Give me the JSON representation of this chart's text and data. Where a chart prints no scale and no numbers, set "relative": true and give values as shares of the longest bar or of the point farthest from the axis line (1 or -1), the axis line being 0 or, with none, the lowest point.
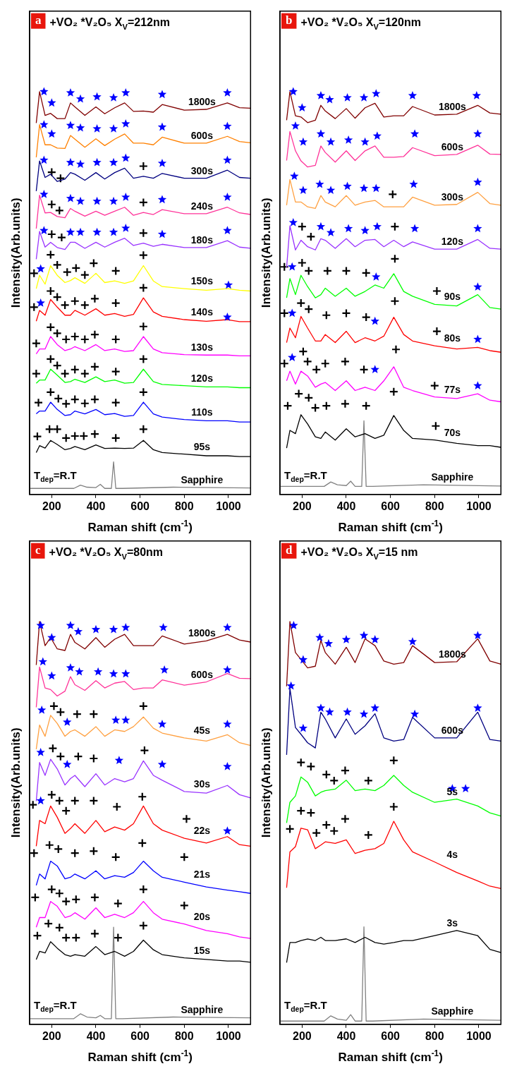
{
  "chart_data": [
    {
      "type": "line",
      "title": "+VO₂ *V₂O₅ X$_{V}$=212nm",
      "xlabel": "Raman shift (cm$^{-1}$)",
      "ylabel": "Intensity(Arb.units)",
      "annotations": [
        "a",
        "T$_{dep}$=R.T"
      ],
      "relative": true,
      "tick_labels": "x",
      "grid": false,
      "legend": false,
      "xlim": [
        100,
        1100
      ],
      "xticks": [
        200,
        400,
        600,
        800,
        1000
      ],
      "x": [
        130,
        145,
        170,
        195,
        225,
        260,
        285,
        305,
        350,
        400,
        440,
        485,
        530,
        570,
        615,
        660,
        700,
        800,
        900,
        995,
        1050,
        1100
      ],
      "series": [
        {
          "name": "1800s",
          "color": "#800000",
          "values": [
            0.922,
            1,
            0.941,
            0.946,
            0.933,
            0.933,
            0.972,
            0.962,
            0.941,
            0.962,
            0.945,
            0.96,
            0.972,
            0.951,
            0.952,
            0.949,
            0.968,
            0.954,
            0.956,
            0.972,
            0.96,
            0.959
          ]
        },
        {
          "name": "600s",
          "color": "#ff8000",
          "values": [
            0.837,
            0.918,
            0.868,
            0.868,
            0.86,
            0.859,
            0.891,
            0.882,
            0.862,
            0.883,
            0.866,
            0.882,
            0.895,
            0.872,
            0.872,
            0.868,
            0.887,
            0.872,
            0.872,
            0.889,
            0.876,
            0.873
          ]
        },
        {
          "name": "300s",
          "color": "#000080",
          "values": [
            0.753,
            0.828,
            0.787,
            0.795,
            0.777,
            0.783,
            0.799,
            0.795,
            0.78,
            0.799,
            0.783,
            0.799,
            0.81,
            0.785,
            0.79,
            0.785,
            0.797,
            0.785,
            0.785,
            0.805,
            0.787,
            0.785
          ]
        },
        {
          "name": "240s",
          "color": "#ff3399",
          "values": [
            0.66,
            0.743,
            0.699,
            0.7,
            0.69,
            0.687,
            0.71,
            0.703,
            0.691,
            0.703,
            0.693,
            0.703,
            0.713,
            0.693,
            0.7,
            0.695,
            0.707,
            0.697,
            0.697,
            0.713,
            0.699,
            0.695
          ]
        },
        {
          "name": "180s",
          "color": "#9933ff",
          "values": [
            0.584,
            0.653,
            0.614,
            0.626,
            0.613,
            0.608,
            0.626,
            0.626,
            0.611,
            0.626,
            0.614,
            0.626,
            0.636,
            0.618,
            0.624,
            0.616,
            0.621,
            0.613,
            0.613,
            0.63,
            0.614,
            0.611
          ]
        },
        {
          "name": "150s",
          "color": "#ffff00",
          "values": [
            0.511,
            0.544,
            0.522,
            0.568,
            0.544,
            0.526,
            0.531,
            0.538,
            0.524,
            0.549,
            0.526,
            0.53,
            0.524,
            0.53,
            0.568,
            0.53,
            0.516,
            0.511,
            0.507,
            0.511,
            0.507,
            0.505
          ]
        },
        {
          "name": "140s",
          "color": "#ff0000",
          "values": [
            0.43,
            0.457,
            0.445,
            0.484,
            0.465,
            0.445,
            0.445,
            0.457,
            0.445,
            0.461,
            0.445,
            0.449,
            0.442,
            0.447,
            0.488,
            0.453,
            0.442,
            0.434,
            0.43,
            0.434,
            0.429,
            0.429
          ]
        },
        {
          "name": "130s",
          "color": "#ff00ff",
          "values": [
            0.349,
            0.361,
            0.361,
            0.392,
            0.372,
            0.357,
            0.361,
            0.367,
            0.357,
            0.372,
            0.357,
            0.361,
            0.355,
            0.357,
            0.392,
            0.361,
            0.352,
            0.347,
            0.346,
            0.346,
            0.344,
            0.344
          ]
        },
        {
          "name": "120s",
          "color": "#00ff00",
          "values": [
            0.276,
            0.284,
            0.284,
            0.311,
            0.296,
            0.278,
            0.28,
            0.286,
            0.278,
            0.292,
            0.28,
            0.284,
            0.276,
            0.278,
            0.311,
            0.28,
            0.273,
            0.27,
            0.267,
            0.267,
            0.265,
            0.265
          ]
        },
        {
          "name": "110s",
          "color": "#0000ff",
          "values": [
            0.2,
            0.207,
            0.207,
            0.229,
            0.211,
            0.196,
            0.198,
            0.207,
            0.2,
            0.211,
            0.198,
            0.201,
            0.194,
            0.196,
            0.229,
            0.2,
            0.192,
            0.186,
            0.183,
            0.183,
            0.18,
            0.18
          ]
        },
        {
          "name": "95s",
          "color": "#000000",
          "values": [
            0.104,
            0.121,
            0.115,
            0.134,
            0.124,
            0.111,
            0.114,
            0.119,
            0.111,
            0.123,
            0.114,
            0.115,
            0.114,
            0.115,
            0.134,
            0.111,
            0.104,
            0.1,
            0.096,
            0.096,
            0.094,
            0.094
          ]
        },
        {
          "name": "Sapphire",
          "color": "#808080",
          "x": [
            100,
            300,
            330,
            360,
            400,
            420,
            440,
            470,
            480,
            490,
            520,
            750,
            1100
          ],
          "values": [
            0.015,
            0.015,
            0.023,
            0.018,
            0.017,
            0.025,
            0.015,
            0.015,
            0.081,
            0.015,
            0.015,
            0.018,
            0.016
          ]
        },
        {
          "type": "scatter",
          "marker": "star",
          "color": "#0000ff",
          "x": [
            165,
            200,
            285,
            330,
            405,
            480,
            535,
            700,
            995,
            165,
            200,
            285,
            330,
            405,
            480,
            535,
            700,
            995,
            165,
            285,
            330,
            405,
            480,
            535,
            700,
            995,
            165,
            285,
            330,
            405,
            480,
            535,
            700,
            995,
            165,
            285,
            330,
            405,
            480,
            535,
            700,
            995,
            150,
            1000,
            150,
            995
          ],
          "values": [
            1.0,
            0.972,
            0.997,
            0.982,
            0.987,
            0.985,
            0.997,
            0.993,
            0.997,
            0.918,
            0.895,
            0.916,
            0.91,
            0.908,
            0.908,
            0.92,
            0.912,
            0.914,
            0.83,
            0.824,
            0.82,
            0.824,
            0.824,
            0.835,
            0.822,
            0.83,
            0.745,
            0.735,
            0.728,
            0.728,
            0.728,
            0.738,
            0.732,
            0.738,
            0.655,
            0.651,
            0.651,
            0.651,
            0.651,
            0.661,
            0.646,
            0.655,
            0.56,
            0.52,
            0.475,
            0.44
          ]
        },
        {
          "type": "scatter",
          "marker": "cross",
          "color": "#000000",
          "x": [
            200,
            240,
            615,
            200,
            235,
            615,
            200,
            245,
            615,
            120,
            195,
            225,
            270,
            310,
            350,
            390,
            490,
            615,
            120,
            195,
            225,
            260,
            305,
            350,
            395,
            490,
            615,
            130,
            195,
            225,
            265,
            305,
            350,
            395,
            490,
            615,
            130,
            195,
            225,
            260,
            305,
            350,
            395,
            490,
            615,
            140,
            195,
            230,
            265,
            305,
            350,
            395,
            490,
            615,
            135,
            190,
            225,
            265,
            305,
            345,
            395,
            490,
            615
          ],
          "values": [
            0.8,
            0.785,
            0.815,
            0.72,
            0.705,
            0.725,
            0.646,
            0.638,
            0.649,
            0.549,
            0.595,
            0.57,
            0.552,
            0.562,
            0.545,
            0.574,
            0.555,
            0.594,
            0.465,
            0.505,
            0.49,
            0.47,
            0.48,
            0.47,
            0.486,
            0.475,
            0.513,
            0.375,
            0.415,
            0.4,
            0.385,
            0.392,
            0.385,
            0.397,
            0.385,
            0.417,
            0.3,
            0.336,
            0.32,
            0.3,
            0.31,
            0.3,
            0.317,
            0.305,
            0.336,
            0.228,
            0.254,
            0.238,
            0.225,
            0.236,
            0.226,
            0.236,
            0.228,
            0.254,
            0.144,
            0.162,
            0.162,
            0.14,
            0.145,
            0.145,
            0.15,
            0.14,
            0.162
          ]
        }
      ]
    },
    {
      "type": "line",
      "title": "+VO₂ *V₂O₅ X$_{V}$=120nm",
      "xlabel": "Raman shift (cm$^{-1}$)",
      "ylabel": "Intensity(Arb.units)",
      "annotations": [
        "b",
        "T$_{dep}$=R.T"
      ],
      "relative": true,
      "tick_labels": "x",
      "grid": false,
      "legend": false,
      "xlim": [
        100,
        1100
      ],
      "xticks": [
        200,
        400,
        600,
        800,
        1000
      ],
      "x": [
        130,
        145,
        170,
        195,
        225,
        260,
        285,
        305,
        350,
        400,
        440,
        485,
        530,
        570,
        615,
        660,
        700,
        800,
        900,
        995,
        1050,
        1100
      ],
      "series": [
        {
          "name": "1800s",
          "color": "#800000",
          "values": [
            0.929,
            1,
            0.94,
            0.937,
            0.923,
            0.929,
            0.966,
            0.952,
            0.933,
            0.958,
            0.934,
            0.96,
            0.971,
            0.937,
            0.94,
            0.94,
            0.963,
            0.942,
            0.944,
            0.966,
            0.947,
            0.944
          ]
        },
        {
          "name": "600s",
          "color": "#ff3399",
          "values": [
            0.829,
            0.901,
            0.853,
            0.828,
            0.813,
            0.817,
            0.865,
            0.849,
            0.825,
            0.853,
            0.829,
            0.853,
            0.865,
            0.837,
            0.837,
            0.839,
            0.861,
            0.841,
            0.844,
            0.867,
            0.845,
            0.844
          ]
        },
        {
          "name": "300s",
          "color": "#ffa040",
          "values": [
            0.718,
            0.782,
            0.726,
            0.726,
            0.714,
            0.71,
            0.742,
            0.726,
            0.714,
            0.742,
            0.718,
            0.726,
            0.73,
            0.714,
            0.714,
            0.714,
            0.738,
            0.718,
            0.72,
            0.75,
            0.722,
            0.718
          ]
        },
        {
          "name": "120s",
          "color": "#9933ff",
          "values": [
            0.563,
            0.667,
            0.607,
            0.631,
            0.615,
            0.607,
            0.635,
            0.631,
            0.611,
            0.635,
            0.615,
            0.631,
            0.633,
            0.615,
            0.631,
            0.615,
            0.627,
            0.609,
            0.609,
            0.633,
            0.611,
            0.609
          ]
        },
        {
          "name": "90s",
          "color": "#00ff00",
          "values": [
            0.488,
            0.536,
            0.496,
            0.544,
            0.516,
            0.488,
            0.496,
            0.512,
            0.492,
            0.512,
            0.492,
            0.504,
            0.52,
            0.512,
            0.548,
            0.504,
            0.492,
            0.472,
            0.468,
            0.496,
            0.464,
            0.46
          ]
        },
        {
          "name": "80s",
          "color": "#ff0000",
          "values": [
            0.377,
            0.413,
            0.389,
            0.442,
            0.413,
            0.381,
            0.381,
            0.397,
            0.377,
            0.405,
            0.377,
            0.389,
            0.381,
            0.393,
            0.44,
            0.397,
            0.381,
            0.369,
            0.361,
            0.365,
            0.357,
            0.353
          ]
        },
        {
          "name": "77s",
          "color": "#ff00ff",
          "values": [
            0.282,
            0.306,
            0.274,
            0.306,
            0.294,
            0.266,
            0.274,
            0.278,
            0.258,
            0.282,
            0.258,
            0.266,
            0.258,
            0.282,
            0.317,
            0.266,
            0.258,
            0.242,
            0.238,
            0.25,
            0.234,
            0.23
          ]
        },
        {
          "name": "70s",
          "color": "#000000",
          "values": [
            0.115,
            0.159,
            0.151,
            0.198,
            0.175,
            0.143,
            0.139,
            0.155,
            0.135,
            0.163,
            0.143,
            0.151,
            0.139,
            0.147,
            0.196,
            0.159,
            0.139,
            0.135,
            0.127,
            0.121,
            0.121,
            0.117
          ]
        },
        {
          "name": "Sapphire",
          "color": "#808080",
          "x": [
            100,
            300,
            330,
            360,
            400,
            420,
            440,
            470,
            480,
            490,
            520,
            750,
            1100
          ],
          "values": [
            0.02,
            0.02,
            0.031,
            0.024,
            0.022,
            0.033,
            0.02,
            0.02,
            0.183,
            0.02,
            0.02,
            0.024,
            0.021
          ]
        },
        {
          "type": "scatter",
          "marker": "star",
          "color": "#0000ff",
          "x": [
            160,
            200,
            285,
            325,
            405,
            480,
            535,
            700,
            990,
            170,
            205,
            285,
            330,
            410,
            485,
            540,
            710,
            995,
            165,
            205,
            280,
            330,
            405,
            480,
            535,
            705,
            995,
            160,
            285,
            330,
            410,
            485,
            540,
            710,
            995,
            155,
            535,
            995,
            155,
            530,
            995,
            155,
            530,
            995
          ],
          "values": [
            1.0,
            0.96,
            0.99,
            0.98,
            0.985,
            0.985,
            0.995,
            0.99,
            0.99,
            0.915,
            0.875,
            0.895,
            0.875,
            0.88,
            0.875,
            0.89,
            0.895,
            0.895,
            0.79,
            0.755,
            0.77,
            0.755,
            0.765,
            0.76,
            0.76,
            0.77,
            0.775,
            0.675,
            0.665,
            0.65,
            0.66,
            0.655,
            0.665,
            0.66,
            0.66,
            0.565,
            0.54,
            0.515,
            0.45,
            0.43,
            0.385,
            0.34,
            0.31,
            0.27
          ]
        },
        {
          "type": "scatter",
          "marker": "cross",
          "color": "#000000",
          "x": [
            610,
            200,
            240,
            620,
            120,
            200,
            230,
            315,
            400,
            490,
            620,
            810,
            120,
            195,
            230,
            310,
            400,
            490,
            620,
            810,
            120,
            205,
            225,
            265,
            305,
            395,
            480,
            625,
            800,
            135,
            185,
            230,
            260,
            310,
            395,
            490,
            615,
            805
          ],
          "values": [
            0.745,
            0.665,
            0.64,
            0.665,
            0.565,
            0.575,
            0.555,
            0.555,
            0.555,
            0.55,
            0.585,
            0.505,
            0.45,
            0.475,
            0.46,
            0.445,
            0.45,
            0.44,
            0.48,
            0.405,
            0.325,
            0.355,
            0.33,
            0.31,
            0.325,
            0.33,
            0.31,
            0.36,
            0.27,
            0.22,
            0.25,
            0.24,
            0.215,
            0.22,
            0.225,
            0.22,
            0.255,
            0.17
          ]
        }
      ]
    },
    {
      "type": "line",
      "title": "+VO₂ *V₂O₅ X$_{V}$=80nm",
      "xlabel": "Raman shift (cm$^{-1}$)",
      "ylabel": "Intensity(Arb.units)",
      "annotations": [
        "c",
        "T$_{dep}$=R.T"
      ],
      "relative": true,
      "tick_labels": "x",
      "grid": false,
      "legend": false,
      "xlim": [
        100,
        1100
      ],
      "xticks": [
        200,
        400,
        600,
        800,
        1000
      ],
      "x": [
        130,
        145,
        170,
        195,
        225,
        260,
        285,
        305,
        350,
        400,
        440,
        485,
        530,
        570,
        615,
        660,
        700,
        800,
        900,
        995,
        1050,
        1100
      ],
      "series": [
        {
          "name": "1800s",
          "color": "#800000",
          "values": [
            0.892,
            1,
            0.94,
            0.96,
            0.932,
            0.928,
            0.968,
            0.948,
            0.932,
            0.96,
            0.936,
            0.956,
            0.968,
            0.94,
            0.94,
            0.94,
            0.964,
            0.944,
            0.952,
            0.968,
            0.954,
            0.949
          ]
        },
        {
          "name": "600s",
          "color": "#ff3399",
          "values": [
            0.787,
            0.887,
            0.835,
            0.831,
            0.815,
            0.827,
            0.863,
            0.843,
            0.829,
            0.853,
            0.835,
            0.847,
            0.851,
            0.831,
            0.835,
            0.835,
            0.855,
            0.842,
            0.85,
            0.871,
            0.859,
            0.858
          ]
        },
        {
          "name": "45s",
          "color": "#ffa040",
          "values": [
            0.683,
            0.743,
            0.715,
            0.767,
            0.747,
            0.715,
            0.727,
            0.731,
            0.715,
            0.739,
            0.715,
            0.731,
            0.727,
            0.739,
            0.763,
            0.735,
            0.723,
            0.711,
            0.703,
            0.719,
            0.699,
            0.692
          ]
        },
        {
          "name": "30s",
          "color": "#9933ff",
          "values": [
            0.554,
            0.65,
            0.618,
            0.658,
            0.634,
            0.594,
            0.61,
            0.618,
            0.59,
            0.622,
            0.594,
            0.61,
            0.602,
            0.61,
            0.654,
            0.618,
            0.606,
            0.578,
            0.574,
            0.593,
            0.57,
            0.562
          ]
        },
        {
          "name": "22s",
          "color": "#ff0000",
          "values": [
            0.442,
            0.506,
            0.498,
            0.542,
            0.514,
            0.474,
            0.486,
            0.498,
            0.474,
            0.506,
            0.478,
            0.49,
            0.482,
            0.498,
            0.542,
            0.498,
            0.482,
            0.462,
            0.45,
            0.466,
            0.446,
            0.442
          ]
        },
        {
          "name": "21s",
          "color": "#0000ff",
          "values": [
            0.345,
            0.373,
            0.361,
            0.405,
            0.393,
            0.361,
            0.365,
            0.373,
            0.361,
            0.381,
            0.361,
            0.369,
            0.365,
            0.377,
            0.405,
            0.381,
            0.365,
            0.353,
            0.341,
            0.333,
            0.329,
            0.325
          ]
        },
        {
          "name": "20s",
          "color": "#ff00ff",
          "values": [
            0.241,
            0.265,
            0.265,
            0.305,
            0.293,
            0.265,
            0.269,
            0.277,
            0.261,
            0.289,
            0.265,
            0.273,
            0.265,
            0.277,
            0.305,
            0.277,
            0.261,
            0.249,
            0.233,
            0.225,
            0.217,
            0.213
          ]
        },
        {
          "name": "15s",
          "color": "#000000",
          "values": [
            0.161,
            0.181,
            0.177,
            0.205,
            0.189,
            0.173,
            0.169,
            0.173,
            0.169,
            0.193,
            0.173,
            0.181,
            0.169,
            0.181,
            0.209,
            0.185,
            0.173,
            0.165,
            0.161,
            0.157,
            0.157,
            0.154
          ]
        },
        {
          "name": "Sapphire",
          "color": "#808080",
          "x": [
            100,
            300,
            330,
            360,
            400,
            420,
            440,
            470,
            480,
            490,
            520,
            750,
            1100
          ],
          "values": [
            0.014,
            0.014,
            0.026,
            0.018,
            0.016,
            0.022,
            0.014,
            0.014,
            0.241,
            0.014,
            0.014,
            0.018,
            0.016
          ]
        },
        {
          "type": "scatter",
          "marker": "star",
          "color": "#0000ff",
          "x": [
            150,
            200,
            285,
            320,
            400,
            480,
            535,
            705,
            995,
            160,
            200,
            285,
            325,
            410,
            480,
            535,
            710,
            995,
            155,
            270,
            490,
            535,
            700,
            995,
            150,
            270,
            505,
            700,
            995,
            150,
            995
          ],
          "values": [
            0.99,
            0.96,
            0.99,
            0.975,
            0.98,
            0.98,
            0.985,
            0.985,
            0.985,
            0.9,
            0.865,
            0.885,
            0.875,
            0.875,
            0.87,
            0.87,
            0.88,
            0.88,
            0.78,
            0.75,
            0.755,
            0.755,
            0.745,
            0.745,
            0.675,
            0.645,
            0.655,
            0.645,
            0.64,
            0.555,
            0.48
          ]
        },
        {
          "type": "scatter",
          "marker": "cross",
          "color": "#000000",
          "x": [
            210,
            240,
            315,
            390,
            615,
            205,
            240,
            320,
            390,
            620,
            115,
            200,
            235,
            265,
            305,
            390,
            495,
            610,
            810,
            120,
            190,
            230,
            305,
            390,
            490,
            610,
            800,
            125,
            200,
            235,
            265,
            310,
            395,
            500,
            615,
            800,
            135,
            185,
            235,
            265,
            310,
            395,
            500,
            615
          ],
          "values": [
            0.79,
            0.775,
            0.77,
            0.77,
            0.79,
            0.685,
            0.665,
            0.665,
            0.66,
            0.68,
            0.545,
            0.57,
            0.555,
            0.53,
            0.555,
            0.555,
            0.54,
            0.565,
            0.51,
            0.425,
            0.445,
            0.435,
            0.425,
            0.43,
            0.415,
            0.45,
            0.415,
            0.315,
            0.335,
            0.325,
            0.305,
            0.31,
            0.315,
            0.3,
            0.335,
            0.295,
            0.22,
            0.25,
            0.24,
            0.215,
            0.215,
            0.225,
            0.215,
            0.245
          ]
        }
      ]
    },
    {
      "type": "line",
      "title": "+VO₂ *V₂O₅ X$_{V}$=15 nm",
      "xlabel": "Raman shift (cm$^{-1}$)",
      "ylabel": "Intensity(Arb.units)",
      "annotations": [
        "d",
        "T$_{dep}$=R.T"
      ],
      "relative": true,
      "tick_labels": "x",
      "grid": false,
      "legend": false,
      "xlim": [
        100,
        1100
      ],
      "xticks": [
        200,
        400,
        600,
        800,
        1000
      ],
      "x": [
        130,
        145,
        170,
        195,
        225,
        260,
        285,
        305,
        350,
        400,
        440,
        485,
        530,
        570,
        615,
        660,
        700,
        800,
        900,
        995,
        1050,
        1100
      ],
      "series": [
        {
          "name": "1800s",
          "color": "#800000",
          "values": [
            0.839,
            1,
            0.923,
            0.906,
            0.885,
            0.889,
            0.953,
            0.923,
            0.894,
            0.936,
            0.898,
            0.957,
            0.94,
            0.902,
            0.894,
            0.898,
            0.94,
            0.898,
            0.9,
            0.957,
            0.902,
            0.894
          ]
        },
        {
          "name": "600s",
          "color": "#000080",
          "values": [
            0.669,
            0.834,
            0.737,
            0.72,
            0.699,
            0.686,
            0.775,
            0.758,
            0.711,
            0.758,
            0.72,
            0.741,
            0.771,
            0.711,
            0.703,
            0.707,
            0.762,
            0.711,
            0.711,
            0.775,
            0.707,
            0.703
          ]
        },
        {
          "name": "5s",
          "color": "#00ff00",
          "values": [
            0.5,
            0.551,
            0.567,
            0.614,
            0.601,
            0.567,
            0.576,
            0.58,
            0.584,
            0.606,
            0.58,
            0.584,
            0.58,
            0.593,
            0.618,
            0.593,
            0.576,
            0.551,
            0.559,
            0.542,
            0.525,
            0.517
          ]
        },
        {
          "name": "4s",
          "color": "#ff0000",
          "values": [
            0.339,
            0.428,
            0.441,
            0.487,
            0.483,
            0.436,
            0.445,
            0.453,
            0.449,
            0.458,
            0.424,
            0.432,
            0.436,
            0.449,
            0.504,
            0.458,
            0.428,
            0.403,
            0.377,
            0.356,
            0.343,
            0.337
          ]
        },
        {
          "name": "3s",
          "color": "#000000",
          "values": [
            0.153,
            0.203,
            0.203,
            0.208,
            0.212,
            0.208,
            0.216,
            0.208,
            0.208,
            0.212,
            0.203,
            0.216,
            0.203,
            0.199,
            0.203,
            0.208,
            0.208,
            0.22,
            0.233,
            0.22,
            0.186,
            0.178
          ]
        },
        {
          "name": "Sapphire",
          "color": "#808080",
          "x": [
            100,
            300,
            330,
            360,
            400,
            420,
            440,
            470,
            480,
            490,
            520,
            750,
            1100
          ],
          "values": [
            0.008,
            0.008,
            0.021,
            0.013,
            0.01,
            0.024,
            0.008,
            0.008,
            0.242,
            0.008,
            0.008,
            0.013,
            0.01
          ]
        },
        {
          "type": "scatter",
          "marker": "star",
          "color": "#0000ff",
          "x": [
            162,
            205,
            280,
            320,
            400,
            480,
            530,
            700,
            995,
            150,
            205,
            285,
            325,
            405,
            480,
            530,
            710,
            995,
            880,
            940
          ],
          "values": [
            0.99,
            0.905,
            0.96,
            0.945,
            0.955,
            0.965,
            0.955,
            0.95,
            0.965,
            0.84,
            0.735,
            0.785,
            0.775,
            0.775,
            0.77,
            0.785,
            0.77,
            0.785,
            0.585,
            0.585
          ]
        },
        {
          "type": "scatter",
          "marker": "cross",
          "color": "#000000",
          "x": [
            195,
            240,
            310,
            345,
            395,
            500,
            615,
            145,
            195,
            240,
            265,
            310,
            345,
            395,
            500,
            615
          ],
          "values": [
            0.65,
            0.64,
            0.62,
            0.605,
            0.63,
            0.605,
            0.655,
            0.485,
            0.53,
            0.525,
            0.475,
            0.495,
            0.48,
            0.51,
            0.47,
            0.54
          ]
        }
      ]
    }
  ]
}
